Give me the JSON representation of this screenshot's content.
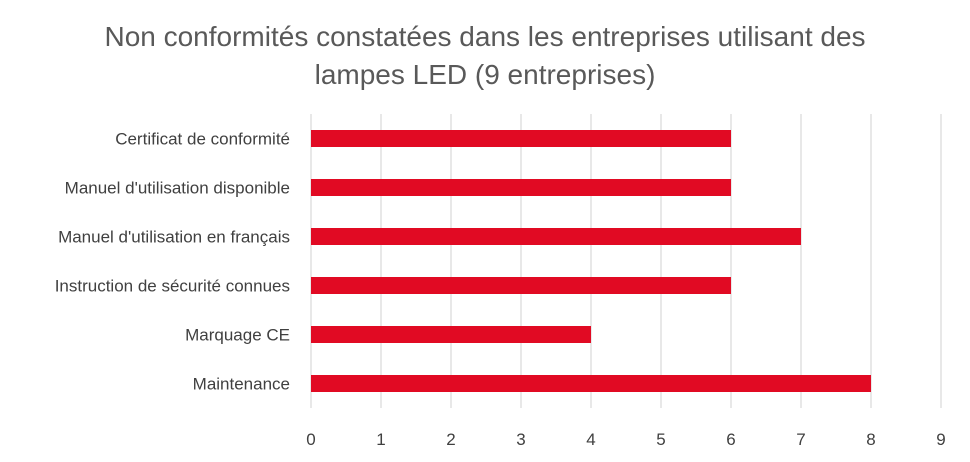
{
  "chart_data": {
    "type": "bar",
    "orientation": "horizontal",
    "title_lines": [
      "Non conformités constatées dans les entreprises utilisant des",
      "lampes LED (9 entreprises)"
    ],
    "categories": [
      "Certificat de conformité",
      "Manuel d'utilisation disponible",
      "Manuel d'utilisation en français",
      "Instruction de sécurité connues",
      "Marquage CE",
      "Maintenance"
    ],
    "values": [
      6,
      6,
      7,
      6,
      4,
      8
    ],
    "xlim": [
      0,
      9
    ],
    "xticks": [
      "0",
      "1",
      "2",
      "3",
      "4",
      "5",
      "6",
      "7",
      "8",
      "9"
    ],
    "grid": "vertical",
    "legend": "none",
    "bar_color": "#e10a23",
    "grid_color": "#d9d9d9",
    "text_color": "#404040"
  }
}
